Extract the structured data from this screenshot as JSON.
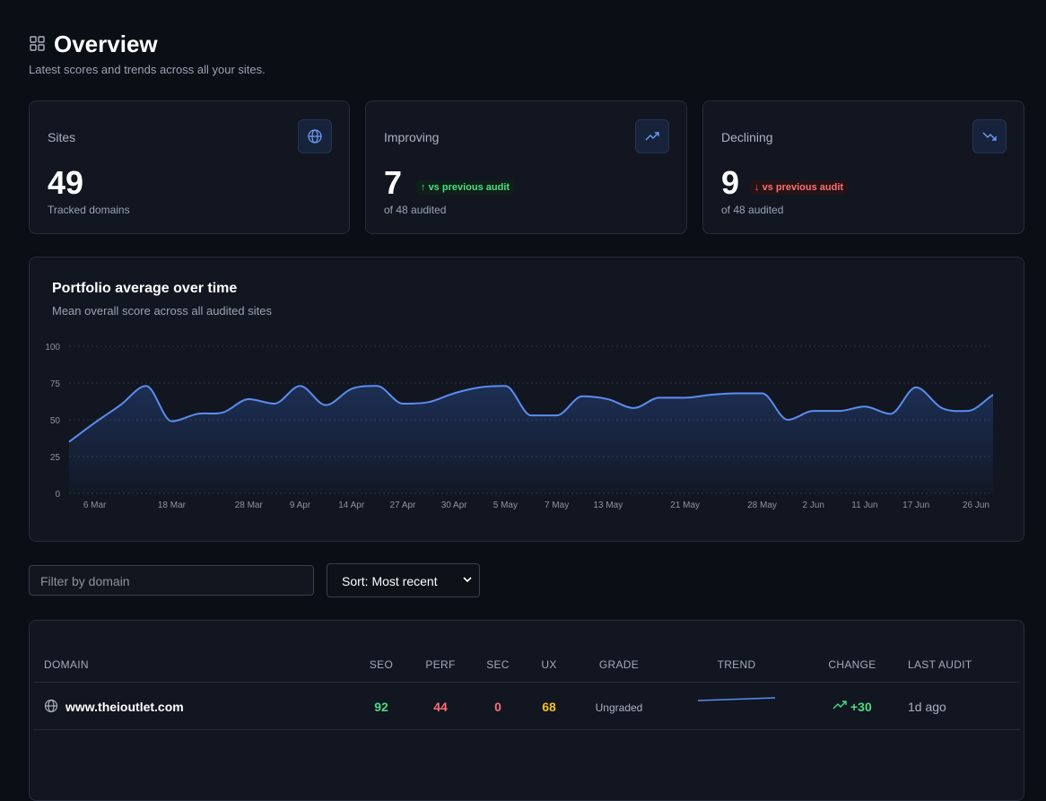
{
  "header": {
    "title": "Overview",
    "subtitle": "Latest scores and trends across all your sites."
  },
  "cards": [
    {
      "label": "Sites",
      "value": 49,
      "note": "Tracked domains"
    },
    {
      "label": "Improving",
      "value": 7,
      "badge": "vs previous audit",
      "note": "of 48 audited"
    },
    {
      "label": "Declining",
      "value": 9,
      "badge": "vs previous audit",
      "note": "of 48 audited"
    }
  ],
  "chart_data": {
    "type": "line",
    "title": "Portfolio average over time",
    "subtitle": "Mean overall score across all audited sites",
    "categories": [
      null,
      "6 Mar",
      null,
      null,
      "18 Mar",
      null,
      null,
      "28 Mar",
      null,
      "9 Apr",
      null,
      "14 Apr",
      null,
      "27 Apr",
      null,
      "30 Apr",
      null,
      "5 May",
      null,
      "7 May",
      null,
      "13 May",
      null,
      null,
      "21 May",
      null,
      null,
      "28 May",
      null,
      "2 Jun",
      null,
      "11 Jun",
      null,
      "17 Jun",
      null,
      null,
      "26 Jun"
    ],
    "values": [
      35,
      48,
      60,
      73,
      49,
      54,
      55,
      64,
      61,
      73,
      60,
      71,
      73,
      61,
      62,
      68,
      72,
      73,
      53,
      53,
      66,
      64,
      58,
      65,
      65,
      67,
      68,
      68,
      50,
      56,
      56,
      59,
      54,
      72,
      58,
      56,
      67
    ],
    "color": "#5b8def",
    "ylim": [
      0,
      100
    ],
    "yticks": [
      0,
      25,
      50,
      75,
      100
    ],
    "grid": true
  },
  "controls": {
    "filter_placeholder": "Filter by domain",
    "sort": "Sort: Most recent"
  },
  "table": {
    "columns": [
      "DOMAIN",
      "SEO",
      "PERF",
      "SEC",
      "UX",
      "GRADE",
      "TREND",
      "CHANGE",
      "LAST AUDIT"
    ],
    "rows": [
      {
        "domain": "www.theioutlet.com",
        "seo": 92,
        "perf": 44,
        "sec": 0,
        "ux": 68,
        "grade": "Ungraded",
        "change": "+30",
        "last_audit": "1d ago"
      }
    ]
  }
}
